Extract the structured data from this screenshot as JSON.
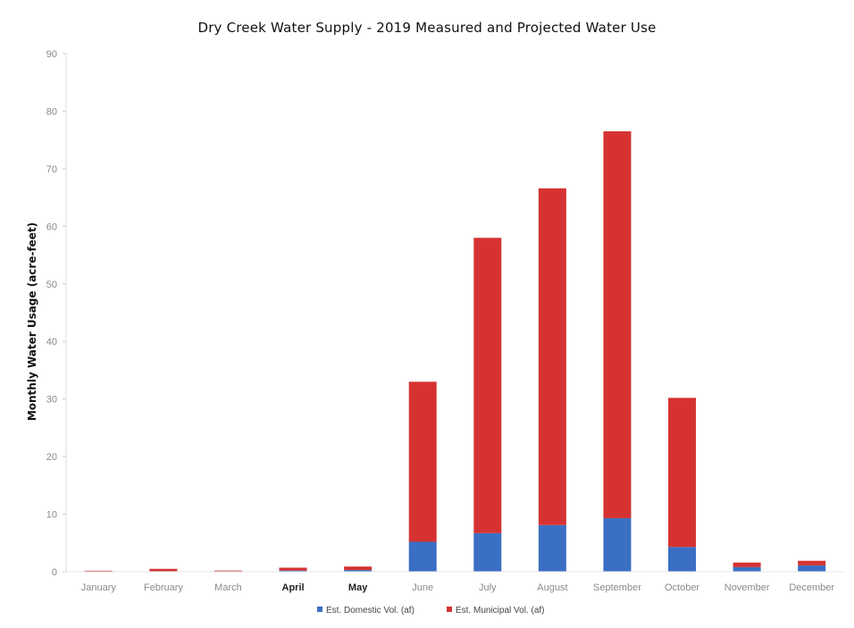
{
  "chart_data": {
    "type": "bar",
    "stacked": true,
    "title": "Dry Creek Water Supply - 2019 Measured and Projected Water Use",
    "xlabel": "",
    "ylabel": "Monthly Water Usage (acre-feet)",
    "ylim": [
      0,
      90
    ],
    "yticks": [
      0,
      10,
      20,
      30,
      40,
      50,
      60,
      70,
      80,
      90
    ],
    "grid": false,
    "legend_position": "bottom",
    "categories": [
      "January",
      "February",
      "March",
      "April",
      "May",
      "June",
      "July",
      "August",
      "September",
      "October",
      "November",
      "December"
    ],
    "series": [
      {
        "name": "Est. Domestic Vol. (af)",
        "color": "#3a6fc4",
        "values": [
          0.05,
          0.1,
          0.05,
          0.2,
          0.3,
          5.2,
          6.7,
          8.1,
          9.3,
          4.3,
          0.8,
          1.1
        ]
      },
      {
        "name": "Est. Municipal Vol. (af)",
        "color": "#d63232",
        "values": [
          0.1,
          0.4,
          0.15,
          0.5,
          0.6,
          27.8,
          51.3,
          58.5,
          67.2,
          25.9,
          0.8,
          0.8
        ]
      }
    ]
  }
}
